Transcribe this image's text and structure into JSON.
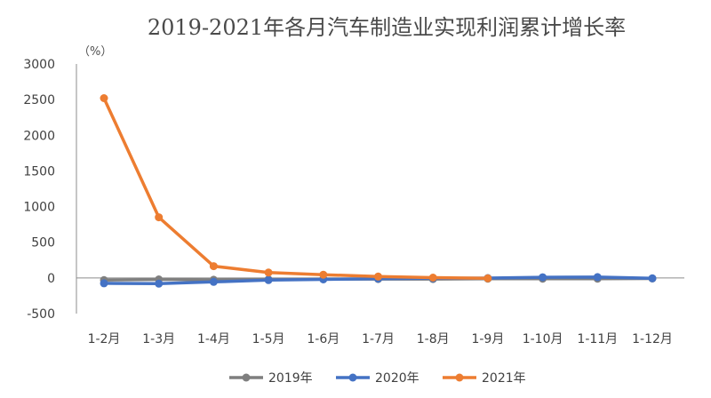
{
  "chart_data": {
    "type": "line",
    "title": "2019-2021年各月汽车制造业实现利润累计增长率",
    "unit_label": "（%）",
    "categories": [
      "1-2月",
      "1-3月",
      "1-4月",
      "1-5月",
      "1-6月",
      "1-7月",
      "1-8月",
      "1-9月",
      "1-10月",
      "1-11月",
      "1-12月"
    ],
    "ylim": [
      -500,
      3000
    ],
    "yticks": [
      "3000",
      "2500",
      "2000",
      "1500",
      "1000",
      "500",
      "0",
      "-500"
    ],
    "ytick_values": [
      3000,
      2500,
      2000,
      1500,
      1000,
      500,
      0,
      -500
    ],
    "grid": false,
    "legend_position": "bottom",
    "series": [
      {
        "name": "2019年",
        "color": "#7f7f7f",
        "values": [
          -30,
          -20,
          -25,
          -20,
          -15,
          -15,
          -15,
          -10,
          -10,
          -10,
          -8
        ]
      },
      {
        "name": "2020年",
        "color": "#4472c4",
        "values": [
          -75,
          -80,
          -55,
          -30,
          -20,
          -10,
          -5,
          -2,
          10,
          12,
          -5
        ]
      },
      {
        "name": "2021年",
        "color": "#ed7d31",
        "values": [
          2520,
          850,
          165,
          75,
          45,
          20,
          5,
          -5,
          null,
          null,
          null
        ]
      }
    ]
  }
}
